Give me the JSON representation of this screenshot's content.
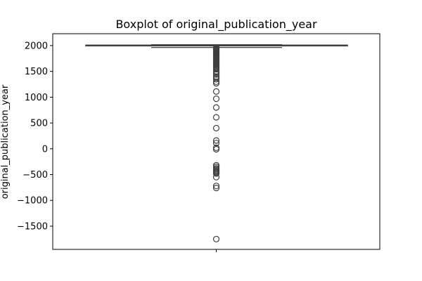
{
  "chart_data": {
    "type": "boxplot",
    "title": "Boxplot of original_publication_year",
    "xlabel": "",
    "ylabel": "original_publication_year",
    "yticks": [
      2000,
      1500,
      1000,
      500,
      0,
      -500,
      -1000,
      -1500
    ],
    "ytick_labels": [
      "2000",
      "1500",
      "1000",
      "500",
      "0",
      "−500",
      "−1000",
      "−1500"
    ],
    "ylim": [
      -1950,
      2230
    ],
    "grid": false,
    "box": {
      "whisker_low": 1963,
      "q1": 1995,
      "median": 2002,
      "q3": 2009,
      "whisker_high": 2017
    },
    "outliers": [
      1960,
      1952,
      1944,
      1935,
      1925,
      1912,
      1900,
      1885,
      1870,
      1858,
      1845,
      1830,
      1815,
      1800,
      1785,
      1770,
      1755,
      1740,
      1725,
      1710,
      1695,
      1680,
      1665,
      1650,
      1635,
      1620,
      1600,
      1580,
      1560,
      1540,
      1500,
      1470,
      1440,
      1400,
      1380,
      1350,
      1300,
      1270,
      1110,
      970,
      800,
      610,
      400,
      160,
      110,
      20,
      -10,
      -320,
      -350,
      -380,
      -400,
      -420,
      -440,
      -460,
      -480,
      -550,
      -720,
      -760,
      -1750
    ],
    "colors": {
      "box_face": "#3a76af",
      "box_edge": "#3f3f3f",
      "outlier": "#3f3f3f"
    }
  }
}
